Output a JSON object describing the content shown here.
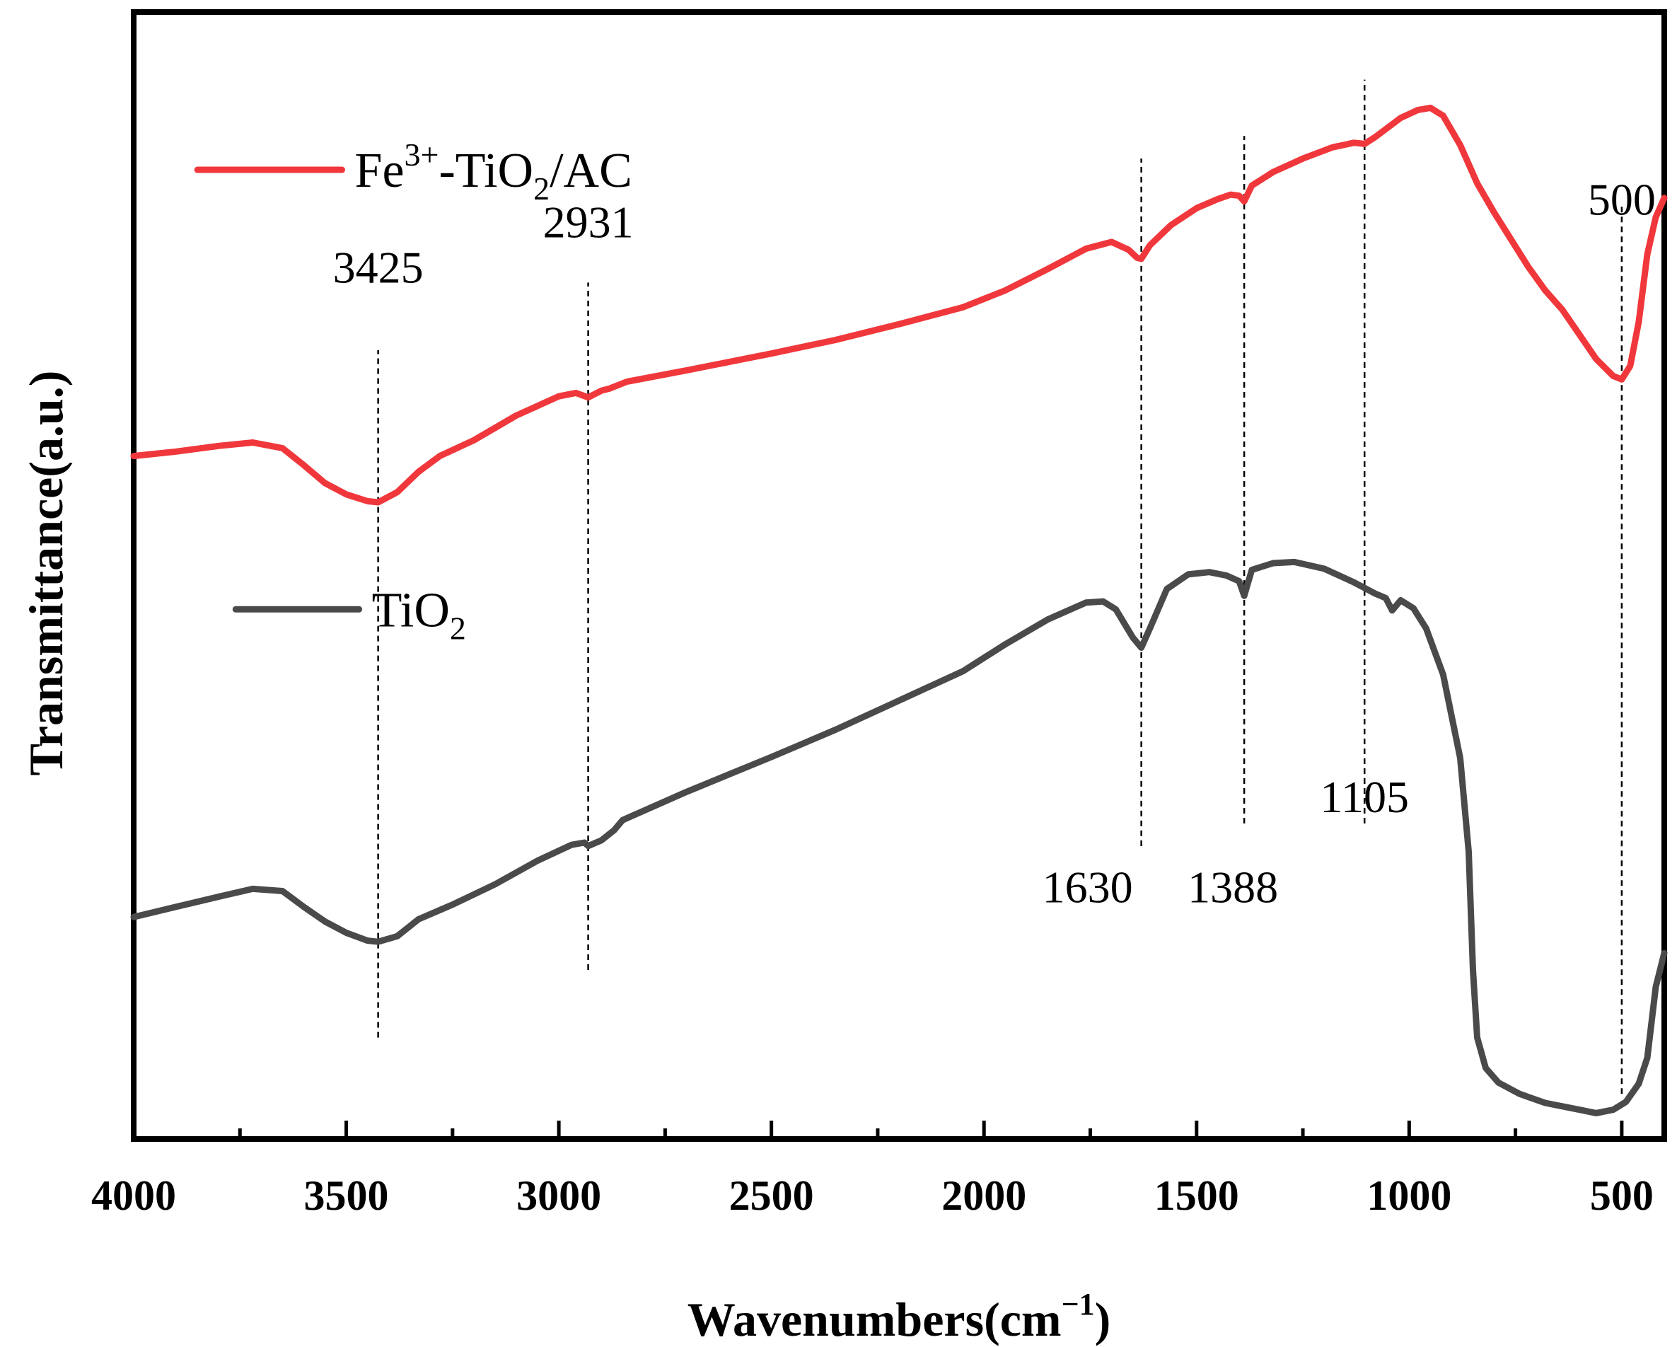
{
  "chart_data": {
    "type": "line",
    "title": "",
    "xlabel": "Wavenumbers(cm",
    "xlabel_sup": "−1",
    "xlabel_end": ")",
    "ylabel": "Transmittance(a.u.)",
    "xlim": [
      4000,
      400
    ],
    "ylim": [
      0,
      100
    ],
    "x_reversed": true,
    "y_ticks_visible": false,
    "grid": false,
    "xticks": [
      4000,
      3500,
      3000,
      2500,
      2000,
      1500,
      1000,
      500
    ],
    "xtick_labels": [
      "4000",
      "3500",
      "3000",
      "2500",
      "2000",
      "1500",
      "1000",
      "500"
    ],
    "peaks": [
      {
        "x": 3425,
        "label": "3425",
        "y_from": 9,
        "y_to": 70,
        "label_y": 76,
        "anchor": "middle"
      },
      {
        "x": 2931,
        "label": "2931",
        "y_from": 15,
        "y_to": 76,
        "label_y": 80,
        "anchor": "middle"
      },
      {
        "x": 1630,
        "label": "1630",
        "y_from": 26,
        "y_to": 87,
        "label_y": 21,
        "anchor": "end"
      },
      {
        "x": 1388,
        "label": "1388",
        "y_from": 28,
        "y_to": 89,
        "label_y": 21,
        "anchor": "start"
      },
      {
        "x": 1105,
        "label": "1105",
        "y_from": 28,
        "y_to": 94,
        "label_y": 29,
        "anchor": "middle"
      },
      {
        "x": 500,
        "label": "500",
        "y_from": 4,
        "y_to": 83,
        "label_y": 82,
        "anchor": "middle"
      }
    ],
    "legend": [
      {
        "series": "Fe3+-TiO2/AC",
        "base": "Fe",
        "sup": "3+",
        "mid": "-TiO",
        "sub": "2",
        "tail": "/AC",
        "color": "#f0383c",
        "y": 86
      },
      {
        "series": "TiO2",
        "base": "TiO",
        "sup": "",
        "mid": "",
        "sub": "2",
        "tail": "",
        "color": "#4a4a4a",
        "y": 47
      }
    ],
    "series": [
      {
        "name": "Fe3+-TiO2/AC",
        "color": "#f0383c",
        "points": [
          [
            4000,
            60.6
          ],
          [
            3900,
            61.0
          ],
          [
            3800,
            61.5
          ],
          [
            3720,
            61.8
          ],
          [
            3650,
            61.3
          ],
          [
            3600,
            59.8
          ],
          [
            3550,
            58.2
          ],
          [
            3500,
            57.2
          ],
          [
            3450,
            56.6
          ],
          [
            3425,
            56.5
          ],
          [
            3380,
            57.4
          ],
          [
            3330,
            59.2
          ],
          [
            3280,
            60.6
          ],
          [
            3200,
            62.0
          ],
          [
            3100,
            64.2
          ],
          [
            3000,
            65.9
          ],
          [
            2960,
            66.2
          ],
          [
            2931,
            65.8
          ],
          [
            2900,
            66.4
          ],
          [
            2880,
            66.6
          ],
          [
            2840,
            67.2
          ],
          [
            2700,
            68.2
          ],
          [
            2500,
            69.7
          ],
          [
            2350,
            70.9
          ],
          [
            2200,
            72.3
          ],
          [
            2050,
            73.8
          ],
          [
            1950,
            75.3
          ],
          [
            1850,
            77.2
          ],
          [
            1760,
            79.0
          ],
          [
            1700,
            79.6
          ],
          [
            1660,
            78.9
          ],
          [
            1640,
            78.2
          ],
          [
            1630,
            78.1
          ],
          [
            1610,
            79.3
          ],
          [
            1560,
            81.1
          ],
          [
            1500,
            82.6
          ],
          [
            1450,
            83.4
          ],
          [
            1420,
            83.8
          ],
          [
            1400,
            83.7
          ],
          [
            1388,
            83.2
          ],
          [
            1370,
            84.6
          ],
          [
            1320,
            85.8
          ],
          [
            1250,
            87.0
          ],
          [
            1180,
            88.0
          ],
          [
            1130,
            88.4
          ],
          [
            1105,
            88.3
          ],
          [
            1080,
            88.9
          ],
          [
            1020,
            90.6
          ],
          [
            980,
            91.3
          ],
          [
            950,
            91.5
          ],
          [
            920,
            90.8
          ],
          [
            880,
            88.2
          ],
          [
            840,
            84.8
          ],
          [
            800,
            82.2
          ],
          [
            760,
            79.8
          ],
          [
            720,
            77.4
          ],
          [
            680,
            75.3
          ],
          [
            640,
            73.6
          ],
          [
            600,
            71.4
          ],
          [
            560,
            69.2
          ],
          [
            520,
            67.7
          ],
          [
            500,
            67.4
          ],
          [
            480,
            68.6
          ],
          [
            460,
            72.5
          ],
          [
            440,
            78.5
          ],
          [
            420,
            81.8
          ],
          [
            400,
            83.5
          ]
        ]
      },
      {
        "name": "TiO2",
        "color": "#4a4a4a",
        "points": [
          [
            4000,
            19.7
          ],
          [
            3900,
            20.6
          ],
          [
            3800,
            21.5
          ],
          [
            3720,
            22.2
          ],
          [
            3650,
            22.0
          ],
          [
            3600,
            20.6
          ],
          [
            3550,
            19.3
          ],
          [
            3500,
            18.3
          ],
          [
            3450,
            17.6
          ],
          [
            3425,
            17.5
          ],
          [
            3380,
            18.0
          ],
          [
            3330,
            19.5
          ],
          [
            3250,
            20.8
          ],
          [
            3150,
            22.6
          ],
          [
            3050,
            24.7
          ],
          [
            2970,
            26.1
          ],
          [
            2940,
            26.3
          ],
          [
            2931,
            26.0
          ],
          [
            2900,
            26.5
          ],
          [
            2870,
            27.4
          ],
          [
            2850,
            28.3
          ],
          [
            2700,
            30.8
          ],
          [
            2500,
            33.9
          ],
          [
            2350,
            36.3
          ],
          [
            2200,
            38.9
          ],
          [
            2050,
            41.5
          ],
          [
            1950,
            43.9
          ],
          [
            1850,
            46.1
          ],
          [
            1760,
            47.6
          ],
          [
            1720,
            47.7
          ],
          [
            1690,
            47.0
          ],
          [
            1650,
            44.5
          ],
          [
            1630,
            43.6
          ],
          [
            1610,
            45.3
          ],
          [
            1570,
            48.8
          ],
          [
            1520,
            50.1
          ],
          [
            1470,
            50.3
          ],
          [
            1430,
            50.0
          ],
          [
            1400,
            49.5
          ],
          [
            1388,
            48.2
          ],
          [
            1370,
            50.5
          ],
          [
            1320,
            51.1
          ],
          [
            1270,
            51.2
          ],
          [
            1200,
            50.6
          ],
          [
            1130,
            49.4
          ],
          [
            1080,
            48.4
          ],
          [
            1055,
            48.0
          ],
          [
            1040,
            46.9
          ],
          [
            1020,
            47.8
          ],
          [
            990,
            47.1
          ],
          [
            960,
            45.3
          ],
          [
            920,
            41.2
          ],
          [
            880,
            33.8
          ],
          [
            860,
            25.5
          ],
          [
            850,
            15.0
          ],
          [
            840,
            9.0
          ],
          [
            820,
            6.3
          ],
          [
            790,
            5.0
          ],
          [
            740,
            4.0
          ],
          [
            680,
            3.2
          ],
          [
            600,
            2.6
          ],
          [
            560,
            2.3
          ],
          [
            520,
            2.6
          ],
          [
            490,
            3.3
          ],
          [
            460,
            4.9
          ],
          [
            440,
            7.2
          ],
          [
            420,
            13.5
          ],
          [
            400,
            16.5
          ]
        ]
      }
    ]
  }
}
